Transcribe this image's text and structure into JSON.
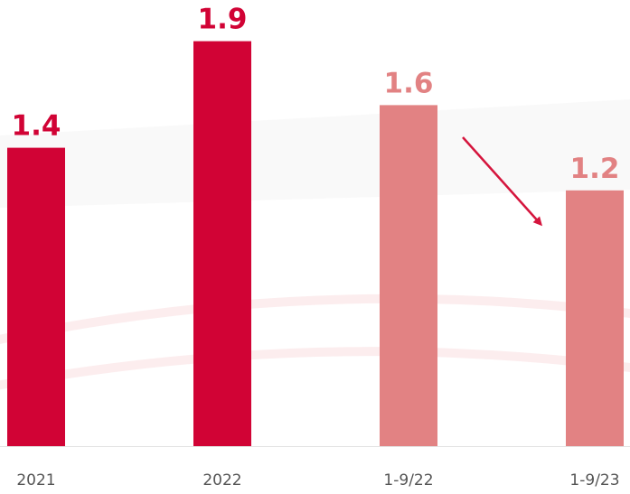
{
  "chart_data": {
    "type": "bar",
    "categories": [
      "2021",
      "2022",
      "1-9/22",
      "1-9/23"
    ],
    "values": [
      1.4,
      1.9,
      1.6,
      1.2
    ],
    "value_labels": [
      "1.4",
      "1.9",
      "1.6",
      "1.2"
    ],
    "title": "",
    "xlabel": "",
    "ylabel": "",
    "ylim": [
      0,
      2.0
    ],
    "grid": false,
    "legend": "none",
    "bar_colors": [
      "#d10335",
      "#d10335",
      "#e28283",
      "#e28283"
    ],
    "label_colors": [
      "#d10335",
      "#d10335",
      "#e28283",
      "#e28283"
    ],
    "annotation": {
      "type": "arrow",
      "from_category": "1-9/22",
      "to_category": "1-9/23",
      "color": "#d5153d",
      "direction": "down"
    }
  },
  "colors": {
    "accent": "#d10335",
    "accent_light": "#e28283",
    "tick_text": "#555555",
    "axis_line": "#e2e2e2"
  }
}
